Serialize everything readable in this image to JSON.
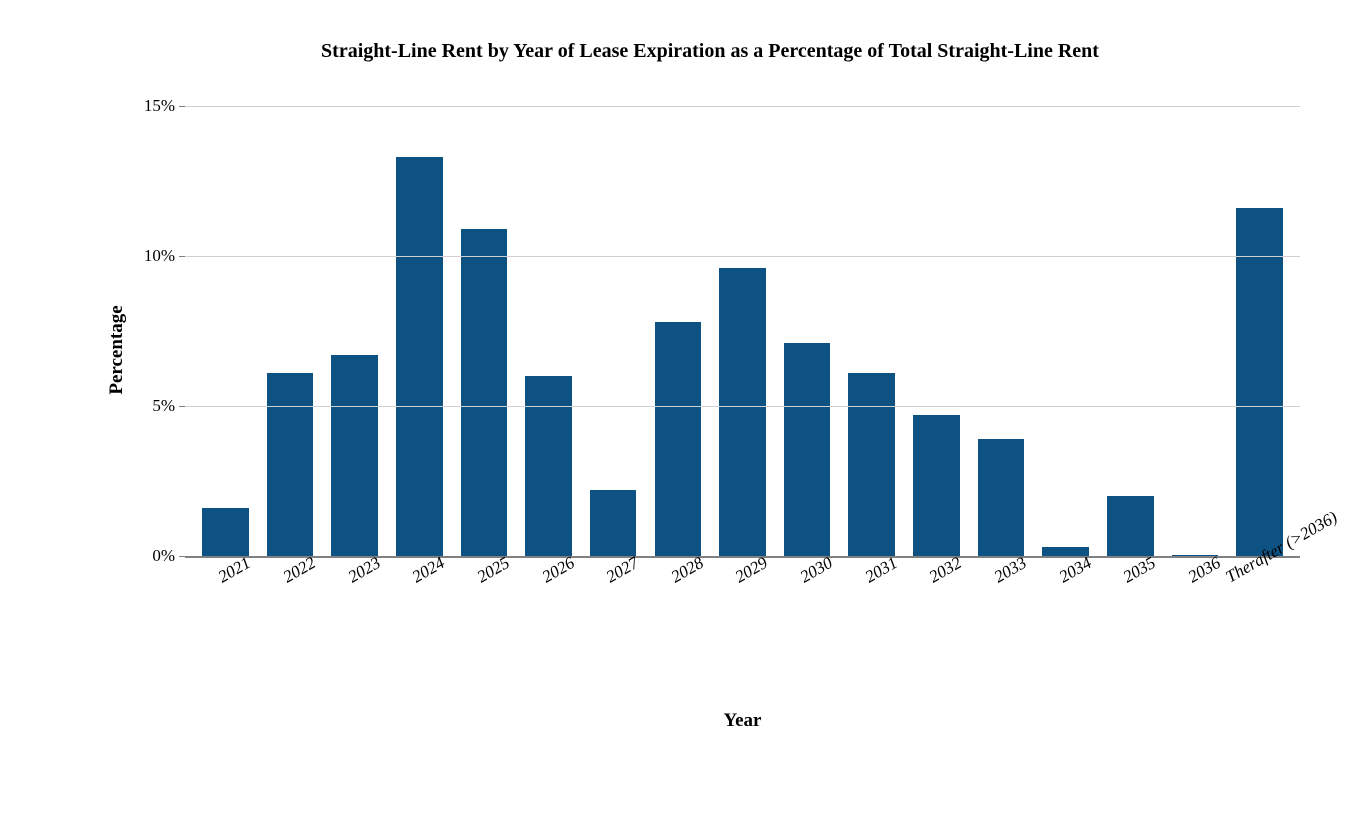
{
  "chart": {
    "type": "bar",
    "title": "Straight-Line Rent by Year of Lease Expiration as a Percentage of Total Straight-Line Rent",
    "title_fontsize": 20,
    "x_axis_label": "Year",
    "y_axis_label": "Percentage",
    "axis_label_fontsize": 19,
    "tick_label_fontsize": 17,
    "categories": [
      "2021",
      "2022",
      "2023",
      "2024",
      "2025",
      "2026",
      "2027",
      "2028",
      "2029",
      "2030",
      "2031",
      "2032",
      "2033",
      "2034",
      "2035",
      "2036",
      "Therafter (>2036)"
    ],
    "values": [
      1.6,
      6.1,
      6.7,
      13.3,
      10.9,
      6.0,
      2.2,
      7.8,
      9.6,
      7.1,
      6.1,
      4.7,
      3.9,
      0.3,
      2.0,
      0.05,
      11.6
    ],
    "ylim": [
      0,
      15.6
    ],
    "yticks": [
      0,
      5,
      10,
      15
    ],
    "ytick_labels": [
      "0%",
      "5%",
      "10%",
      "15%"
    ],
    "bar_color": "#0d5283",
    "background_color": "#ffffff",
    "grid_color": "#d0d0d0",
    "axis_color": "#808080",
    "text_color": "#000000",
    "bar_width": 0.72,
    "x_label_rotation": -30,
    "x_label_style": "italic"
  }
}
